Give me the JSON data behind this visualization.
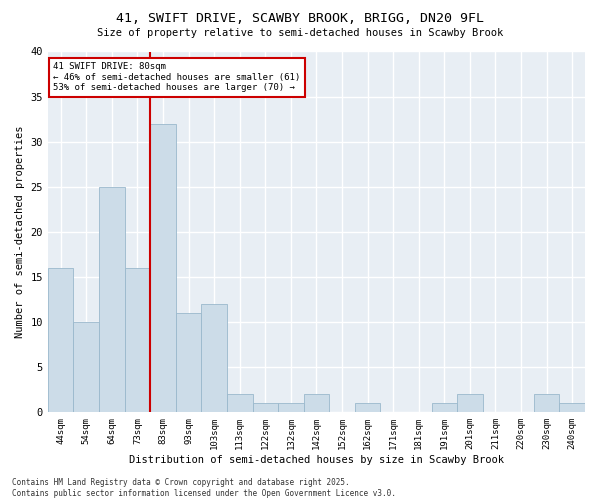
{
  "title": "41, SWIFT DRIVE, SCAWBY BROOK, BRIGG, DN20 9FL",
  "subtitle": "Size of property relative to semi-detached houses in Scawby Brook",
  "xlabel": "Distribution of semi-detached houses by size in Scawby Brook",
  "ylabel": "Number of semi-detached properties",
  "categories": [
    "44sqm",
    "54sqm",
    "64sqm",
    "73sqm",
    "83sqm",
    "93sqm",
    "103sqm",
    "113sqm",
    "122sqm",
    "132sqm",
    "142sqm",
    "152sqm",
    "162sqm",
    "171sqm",
    "181sqm",
    "191sqm",
    "201sqm",
    "211sqm",
    "220sqm",
    "230sqm",
    "240sqm"
  ],
  "values": [
    16,
    10,
    25,
    16,
    32,
    11,
    12,
    2,
    1,
    1,
    2,
    0,
    1,
    0,
    0,
    1,
    2,
    0,
    0,
    2,
    1
  ],
  "bar_color": "#ccdce8",
  "bar_edgecolor": "#9ab8cc",
  "vline_x": 3.5,
  "vline_color": "#cc0000",
  "annotation_title": "41 SWIFT DRIVE: 80sqm",
  "annotation_line1": "← 46% of semi-detached houses are smaller (61)",
  "annotation_line2": "53% of semi-detached houses are larger (70) →",
  "annotation_box_color": "#cc0000",
  "footer_line1": "Contains HM Land Registry data © Crown copyright and database right 2025.",
  "footer_line2": "Contains public sector information licensed under the Open Government Licence v3.0.",
  "bg_color": "#ffffff",
  "plot_bg_color": "#e8eef4",
  "grid_color": "#ffffff",
  "ylim": [
    0,
    40
  ],
  "yticks": [
    0,
    5,
    10,
    15,
    20,
    25,
    30,
    35,
    40
  ]
}
